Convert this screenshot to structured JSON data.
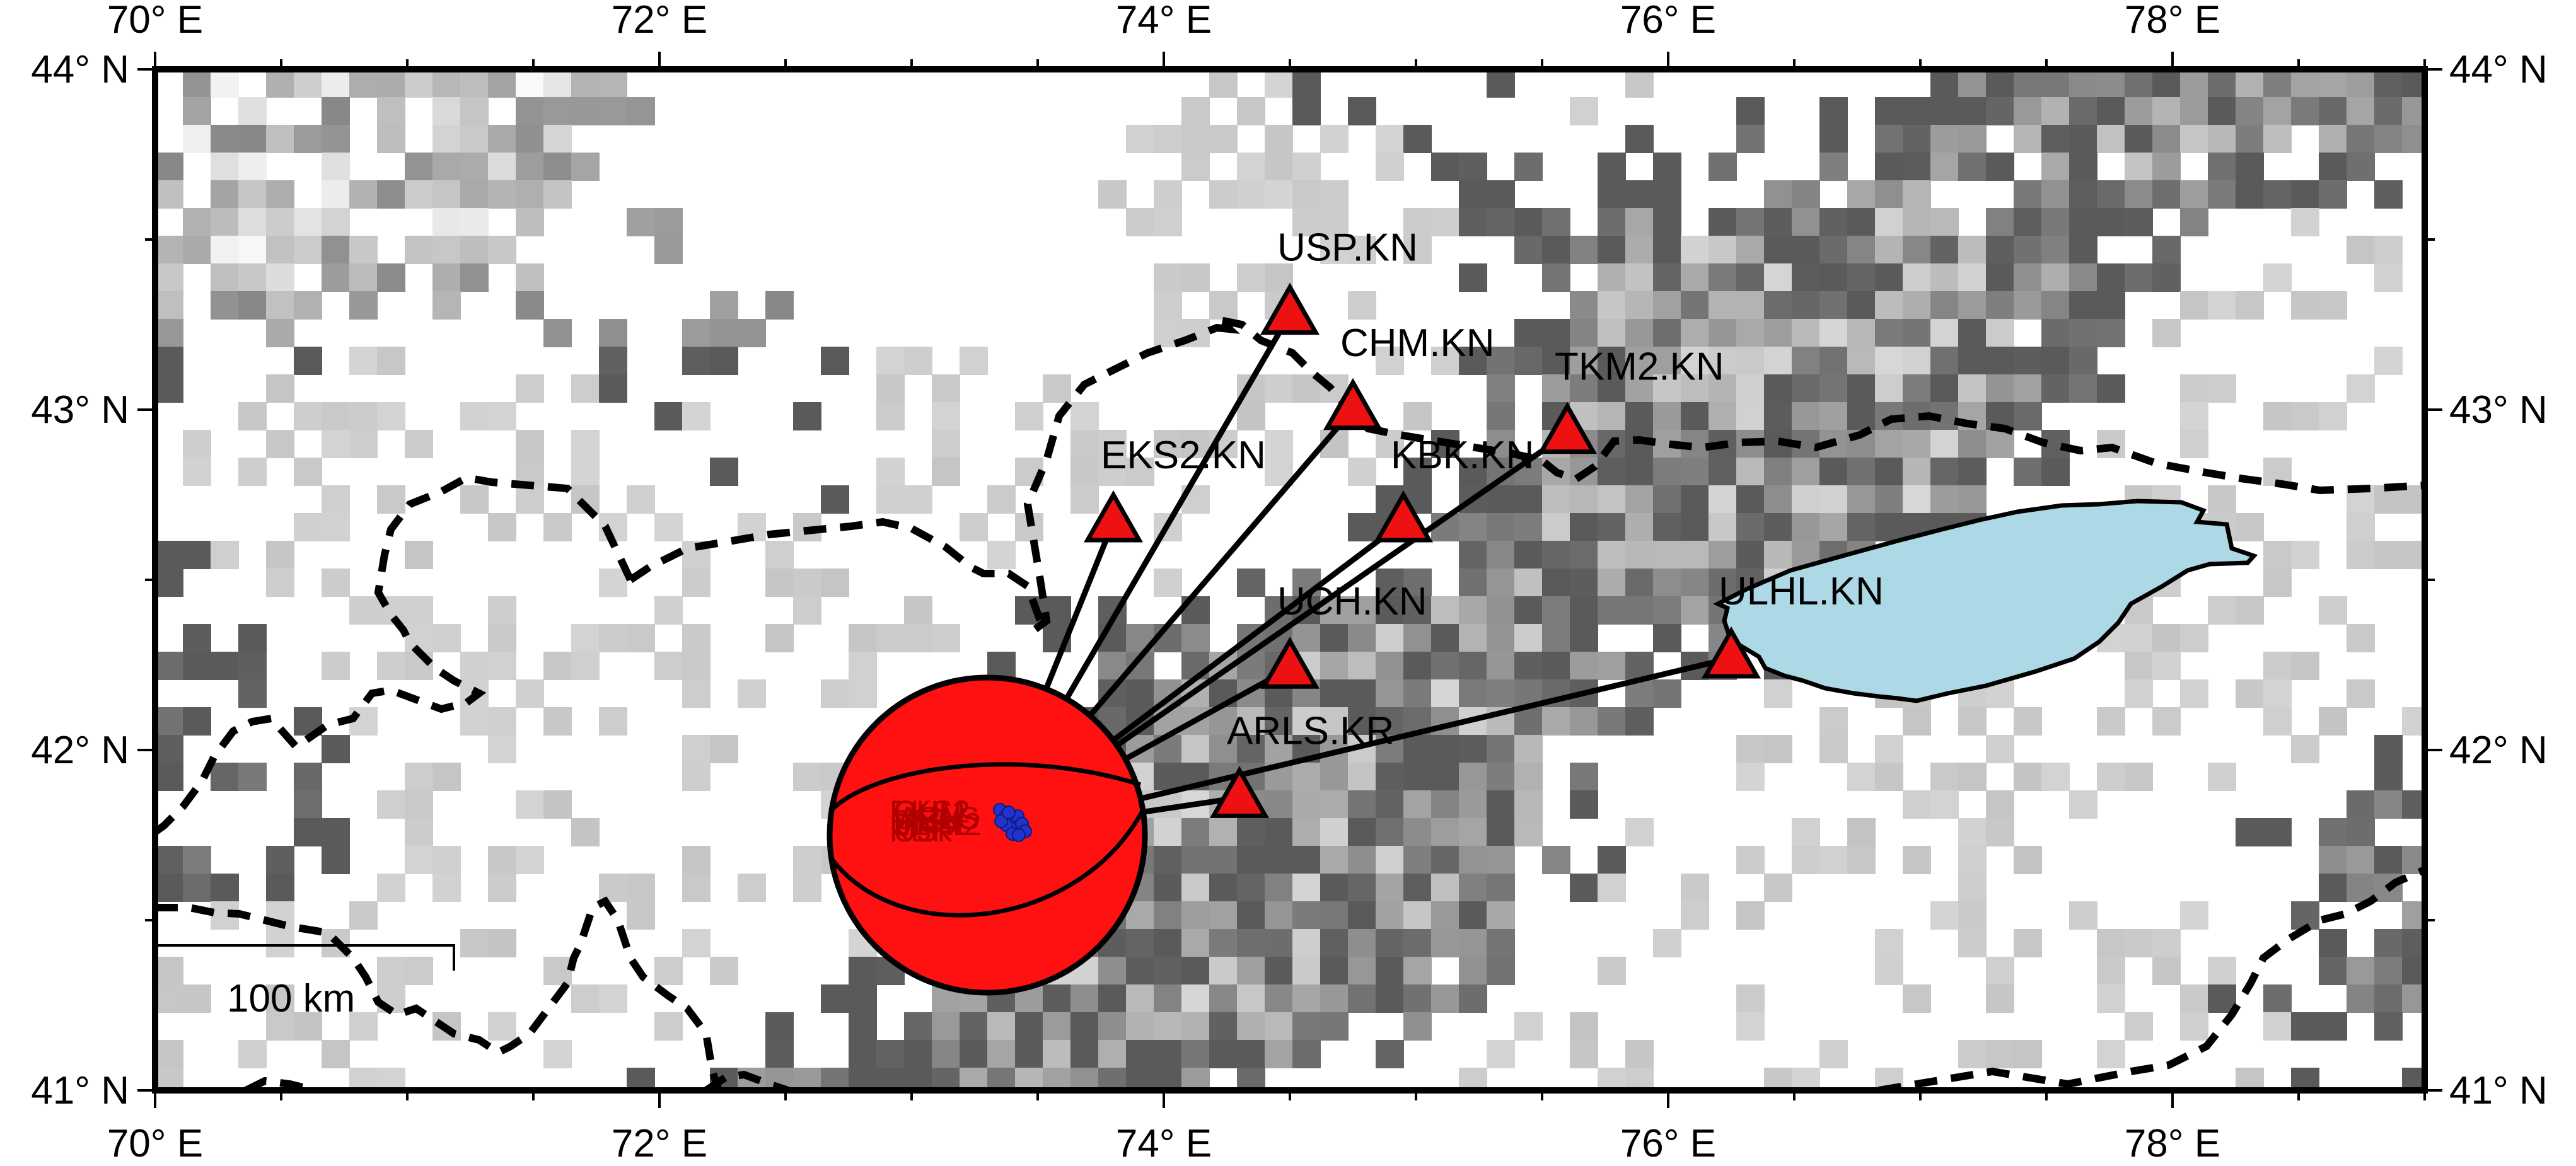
{
  "map": {
    "extent": {
      "lon_min": 70,
      "lon_max": 79,
      "lat_min": 41,
      "lat_max": 44
    },
    "top_lon_labels": [
      "70° E",
      "72° E",
      "74° E",
      "76° E",
      "78° E"
    ],
    "bottom_lon_labels": [
      "70° E",
      "72° E",
      "74° E",
      "76° E",
      "78° E"
    ],
    "left_lat_labels": [
      "44° N",
      "43° N",
      "42° N",
      "41° N"
    ],
    "right_lat_labels": [
      "44° N",
      "43° N",
      "42° N",
      "41° N"
    ],
    "scale_bar": {
      "label": "100 km"
    },
    "lake_color": "#add8e6",
    "station_color": "#ee1111",
    "event_color": "#2233cc",
    "background": "grayscale-relief-raster"
  },
  "event": {
    "lon": 73.3,
    "lat": 41.75,
    "mechanism": "beachball-red",
    "cluster_labels": [
      "EKS2",
      "UCH",
      "TKM2",
      "KBK",
      "CHM",
      "ARLS",
      "ULHL",
      "USP"
    ]
  },
  "stations": [
    {
      "code": "USP.KN",
      "lon": 74.5,
      "lat": 43.28
    },
    {
      "code": "CHM.KN",
      "lon": 74.75,
      "lat": 43.0
    },
    {
      "code": "TKM2.KN",
      "lon": 75.6,
      "lat": 42.93
    },
    {
      "code": "EKS2.KN",
      "lon": 73.8,
      "lat": 42.67
    },
    {
      "code": "KBK.KN",
      "lon": 74.95,
      "lat": 42.67
    },
    {
      "code": "UCH.KN",
      "lon": 74.5,
      "lat": 42.24
    },
    {
      "code": "ULHL.KN",
      "lon": 76.25,
      "lat": 42.27
    },
    {
      "code": "ARLS.KR",
      "lon": 74.3,
      "lat": 41.86
    }
  ]
}
